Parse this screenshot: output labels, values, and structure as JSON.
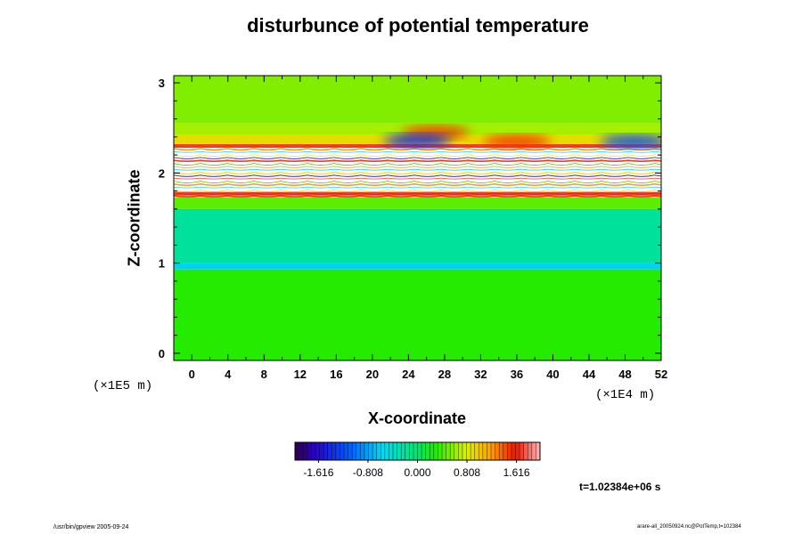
{
  "chart_data": {
    "type": "heatmap",
    "title": "disturbunce of potential temperature",
    "xlabel": "X-coordinate",
    "ylabel": "Z-coordinate",
    "x_scale_label": "(×1E4 m)",
    "y_scale_label": "(×1E5 m)",
    "xlim": [
      -2,
      52
    ],
    "ylim": [
      -0.08,
      3.08
    ],
    "x_ticks": [
      0,
      4,
      8,
      12,
      16,
      20,
      24,
      28,
      32,
      36,
      40,
      44,
      48,
      52
    ],
    "y_ticks": [
      0,
      1,
      2,
      3
    ],
    "colorbar": {
      "min": -2.0,
      "max": 2.0,
      "tick_values": [
        -1.616,
        -0.808,
        0.0,
        0.808,
        1.616
      ],
      "tick_labels": [
        "-1.616",
        "-0.808",
        "0.000",
        "0.808",
        "1.616"
      ]
    },
    "layers": [
      {
        "z": [
          2.55,
          3.08
        ],
        "value": 0.55
      },
      {
        "z": [
          2.42,
          2.55
        ],
        "value": 0.65
      },
      {
        "z": [
          2.32,
          2.42
        ],
        "value": 0.9
      },
      {
        "z": [
          1.73,
          2.32
        ],
        "value": "saturated (banded, off-scale)"
      },
      {
        "z": [
          1.6,
          1.73
        ],
        "value": 0.45
      },
      {
        "z": [
          1.0,
          1.6
        ],
        "value": -0.2
      },
      {
        "z": [
          0.93,
          1.0
        ],
        "value": -0.6
      },
      {
        "z": [
          -0.08,
          0.93
        ],
        "value": 0.3
      }
    ],
    "features": [
      {
        "x": 27,
        "z": 2.45,
        "value": 1.5
      },
      {
        "x": 36,
        "z": 2.35,
        "value": 1.5
      },
      {
        "x": 25,
        "z": 2.36,
        "value": -1.4
      },
      {
        "x": 49,
        "z": 2.35,
        "value": -1.2
      }
    ]
  },
  "time_label": "t=1.02384e+06 s",
  "footer": {
    "left": "/usr/bin/gpview 2005-09-24",
    "right": "arare-all_20050924.nc@PotTemp,t=102384"
  }
}
